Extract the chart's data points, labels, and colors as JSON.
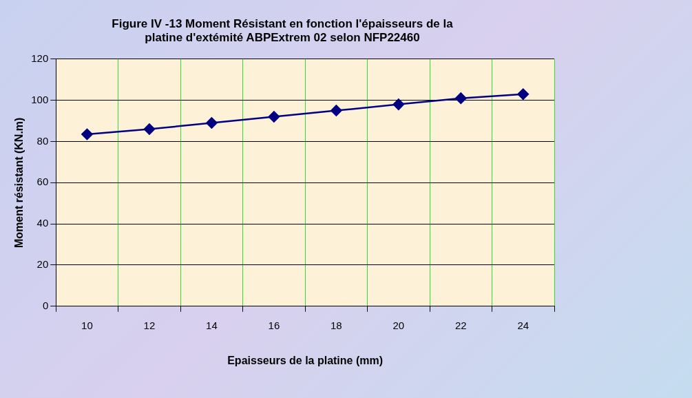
{
  "chart_data": {
    "type": "line",
    "title": [
      "Figure IV -13 Moment Résistant en fonction l'épaisseurs de la",
      "platine d'extémité ABPExtrem 02 selon NFP22460"
    ],
    "xlabel": "Epaisseurs de la platine (mm)",
    "ylabel": "Moment résistant (KN.m)",
    "categories": [
      "10",
      "12",
      "14",
      "16",
      "18",
      "20",
      "22",
      "24"
    ],
    "series": [
      {
        "color": "#000080",
        "values": [
          83.5,
          86,
          89,
          92,
          95,
          98,
          101,
          103
        ]
      }
    ],
    "ylim": [
      0,
      120
    ],
    "yticks": [
      0,
      20,
      40,
      60,
      80,
      100,
      120
    ],
    "grid": true,
    "legend": false,
    "marker": "diamond",
    "line_style": "solid"
  }
}
